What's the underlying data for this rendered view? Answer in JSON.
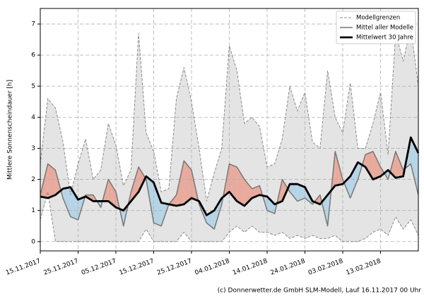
{
  "chart_data": {
    "type": "line",
    "y_label": "Mittlere Sonnenscheindauer [h]",
    "footer": "(c) Donnerwetter.de GmbH SLM-Modell, Lauf 16.11.2017 00 Uhr",
    "x": [
      "15.11.2017",
      "17.11.2017",
      "19.11.2017",
      "21.11.2017",
      "23.11.2017",
      "25.11.2017",
      "27.11.2017",
      "29.11.2017",
      "01.12.2017",
      "03.12.2017",
      "05.12.2017",
      "07.12.2017",
      "09.12.2017",
      "11.12.2017",
      "13.12.2017",
      "15.12.2017",
      "17.12.2017",
      "19.12.2017",
      "21.12.2017",
      "23.12.2017",
      "25.12.2017",
      "27.12.2017",
      "29.12.2017",
      "31.12.2017",
      "02.01.2018",
      "04.01.2018",
      "06.01.2018",
      "08.01.2018",
      "10.01.2018",
      "12.01.2018",
      "14.01.2018",
      "16.01.2018",
      "18.01.2018",
      "20.01.2018",
      "22.01.2018",
      "24.01.2018",
      "26.01.2018",
      "28.01.2018",
      "30.01.2018",
      "01.02.2018",
      "03.02.2018",
      "05.02.2018",
      "07.02.2018",
      "09.02.2018",
      "11.02.2018",
      "13.02.2018",
      "15.02.2018",
      "17.02.2018",
      "19.02.2018",
      "21.02.2018",
      "23.02.2018"
    ],
    "xlim": [
      "15.11.2017",
      "23.02.2018"
    ],
    "xticks": [
      "15.11.2017",
      "25.11.2017",
      "05.12.2017",
      "15.12.2017",
      "25.12.2017",
      "04.01.2018",
      "14.01.2018",
      "24.01.2018",
      "03.02.2018",
      "13.02.2018"
    ],
    "ylim": [
      -0.3,
      7.5
    ],
    "yticks": [
      0,
      1,
      2,
      3,
      4,
      5,
      6,
      7
    ],
    "grid": true,
    "legend": "upper right",
    "bounds": {
      "name": "Modellgrenzen",
      "color": "#8c8c8c",
      "fill": "#e4e4e4",
      "upper": [
        2.5,
        4.6,
        4.3,
        3.2,
        1.5,
        2.5,
        3.3,
        2.0,
        2.3,
        3.8,
        3.1,
        1.8,
        2.3,
        6.7,
        3.5,
        2.9,
        1.6,
        1.7,
        4.6,
        5.6,
        4.5,
        3.0,
        1.3,
        2.2,
        3.0,
        6.3,
        5.5,
        3.8,
        4.0,
        3.7,
        2.4,
        2.5,
        3.3,
        5.0,
        4.2,
        4.8,
        3.2,
        3.0,
        5.5,
        4.0,
        3.5,
        5.1,
        3.0,
        3.0,
        3.8,
        4.8,
        2.8,
        6.7,
        5.8,
        6.9,
        5.0
      ],
      "lower": [
        0.7,
        1.6,
        0,
        0,
        0,
        0,
        0,
        0,
        0,
        0,
        0,
        0,
        0,
        0,
        0.4,
        0,
        0,
        0,
        0,
        0.3,
        0,
        0,
        0,
        0,
        0,
        0.3,
        0.5,
        0.3,
        0.5,
        0.3,
        0.3,
        0.2,
        0.3,
        0.1,
        0.2,
        0.1,
        0.2,
        0.1,
        0.1,
        0.2,
        0,
        0,
        0,
        0.1,
        0.3,
        0.4,
        0.2,
        0.8,
        0.4,
        0.7,
        0.2
      ]
    },
    "series": [
      {
        "name": "Mittel aller Modelle",
        "color": "#777777",
        "width": 1.5,
        "values": [
          1.5,
          2.5,
          2.3,
          1.4,
          0.8,
          0.7,
          1.5,
          1.5,
          1.1,
          2.0,
          1.6,
          0.5,
          1.6,
          2.4,
          2.0,
          0.6,
          0.5,
          1.2,
          1.5,
          2.6,
          2.3,
          1.2,
          0.6,
          0.4,
          1.2,
          2.5,
          2.4,
          2.0,
          1.7,
          1.8,
          1.0,
          0.9,
          2.0,
          1.6,
          1.3,
          1.4,
          1.2,
          1.5,
          0.5,
          2.9,
          2.0,
          1.4,
          2.0,
          2.8,
          2.9,
          2.4,
          2.0,
          2.9,
          2.3,
          2.5,
          1.5
        ]
      },
      {
        "name": "Mittelwert 30 Jahre",
        "color": "#000000",
        "width": 2.8,
        "values": [
          1.45,
          1.4,
          1.5,
          1.7,
          1.75,
          1.35,
          1.45,
          1.3,
          1.3,
          1.3,
          1.1,
          1.0,
          1.3,
          1.6,
          2.1,
          1.9,
          1.25,
          1.2,
          1.15,
          1.2,
          1.4,
          1.3,
          0.85,
          1.0,
          1.4,
          1.6,
          1.3,
          1.15,
          1.4,
          1.5,
          1.45,
          1.2,
          1.3,
          1.85,
          1.85,
          1.75,
          1.3,
          1.2,
          1.5,
          1.8,
          1.85,
          2.1,
          2.55,
          2.4,
          2.0,
          2.1,
          2.3,
          2.05,
          2.1,
          3.35,
          2.85
        ]
      }
    ],
    "above_color": "#e8aa9c",
    "below_color": "#b6d4e6"
  }
}
